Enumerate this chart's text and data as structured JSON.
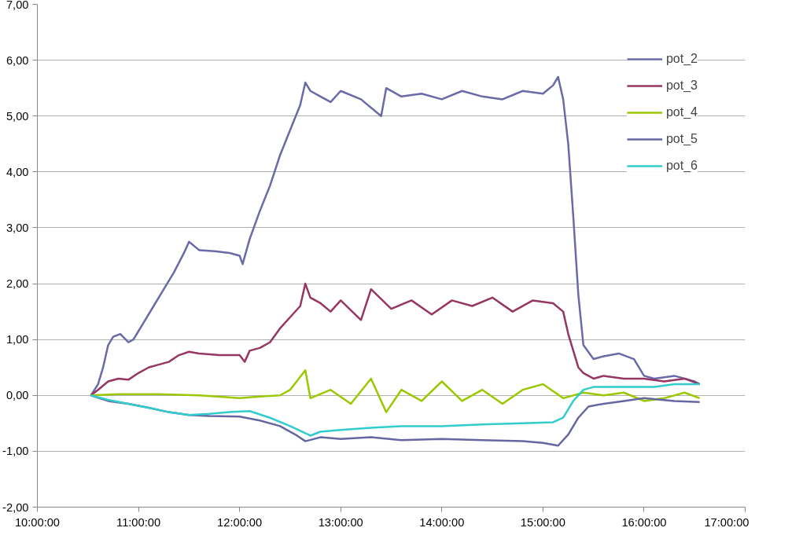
{
  "chart_data": {
    "type": "line",
    "series": [
      {
        "name": "pot_2",
        "color": "#6a6aa8",
        "x": [
          10.53,
          10.6,
          10.65,
          10.7,
          10.75,
          10.82,
          10.9,
          10.95,
          11.0,
          11.05,
          11.15,
          11.25,
          11.35,
          11.45,
          11.5,
          11.6,
          11.75,
          11.9,
          12.0,
          12.03,
          12.1,
          12.2,
          12.3,
          12.4,
          12.5,
          12.6,
          12.65,
          12.7,
          12.8,
          12.9,
          13.0,
          13.2,
          13.4,
          13.45,
          13.6,
          13.8,
          14.0,
          14.2,
          14.4,
          14.6,
          14.8,
          15.0,
          15.1,
          15.15,
          15.2,
          15.25,
          15.3,
          15.35,
          15.4,
          15.5,
          15.6,
          15.75,
          15.9,
          16.0,
          16.1,
          16.3,
          16.5,
          16.55
        ],
        "values": [
          0,
          0.2,
          0.5,
          0.9,
          1.05,
          1.1,
          0.95,
          1.0,
          1.15,
          1.3,
          1.6,
          1.9,
          2.2,
          2.55,
          2.75,
          2.6,
          2.58,
          2.55,
          2.5,
          2.35,
          2.8,
          3.3,
          3.75,
          4.3,
          4.75,
          5.2,
          5.6,
          5.45,
          5.35,
          5.25,
          5.45,
          5.3,
          5.0,
          5.5,
          5.35,
          5.4,
          5.3,
          5.45,
          5.35,
          5.3,
          5.45,
          5.4,
          5.55,
          5.7,
          5.3,
          4.5,
          3.2,
          1.8,
          0.9,
          0.65,
          0.7,
          0.75,
          0.65,
          0.35,
          0.3,
          0.35,
          0.25,
          0.2
        ]
      },
      {
        "name": "pot_3",
        "color": "#953663",
        "x": [
          10.53,
          10.6,
          10.7,
          10.8,
          10.9,
          11.0,
          11.1,
          11.2,
          11.3,
          11.4,
          11.5,
          11.6,
          11.8,
          12.0,
          12.05,
          12.1,
          12.2,
          12.3,
          12.4,
          12.5,
          12.6,
          12.65,
          12.7,
          12.8,
          12.9,
          13.0,
          13.2,
          13.3,
          13.5,
          13.7,
          13.9,
          14.1,
          14.3,
          14.5,
          14.7,
          14.9,
          15.1,
          15.2,
          15.25,
          15.3,
          15.35,
          15.4,
          15.5,
          15.6,
          15.8,
          16.0,
          16.2,
          16.4,
          16.55
        ],
        "values": [
          0,
          0.1,
          0.25,
          0.3,
          0.28,
          0.4,
          0.5,
          0.55,
          0.6,
          0.72,
          0.78,
          0.75,
          0.72,
          0.72,
          0.6,
          0.8,
          0.85,
          0.95,
          1.2,
          1.4,
          1.6,
          2.0,
          1.75,
          1.65,
          1.5,
          1.7,
          1.35,
          1.9,
          1.55,
          1.7,
          1.45,
          1.7,
          1.6,
          1.75,
          1.5,
          1.7,
          1.65,
          1.5,
          1.1,
          0.8,
          0.5,
          0.4,
          0.3,
          0.35,
          0.3,
          0.3,
          0.25,
          0.3,
          0.2
        ]
      },
      {
        "name": "pot_4",
        "color": "#9bc800",
        "x": [
          10.53,
          10.8,
          11.2,
          11.6,
          12.0,
          12.2,
          12.4,
          12.5,
          12.65,
          12.7,
          12.9,
          13.1,
          13.3,
          13.45,
          13.6,
          13.8,
          14.0,
          14.2,
          14.4,
          14.6,
          14.8,
          15.0,
          15.2,
          15.4,
          15.6,
          15.8,
          16.0,
          16.2,
          16.4,
          16.55
        ],
        "values": [
          0,
          0.02,
          0.02,
          0.0,
          -0.05,
          -0.02,
          0.0,
          0.1,
          0.45,
          -0.05,
          0.1,
          -0.15,
          0.3,
          -0.3,
          0.1,
          -0.1,
          0.25,
          -0.1,
          0.1,
          -0.15,
          0.1,
          0.2,
          -0.05,
          0.05,
          0.0,
          0.05,
          -0.1,
          -0.05,
          0.05,
          -0.05
        ]
      },
      {
        "name": "pot_5",
        "color": "#6666a0",
        "x": [
          10.53,
          10.7,
          10.9,
          11.1,
          11.3,
          11.5,
          11.7,
          12.0,
          12.2,
          12.4,
          12.55,
          12.65,
          12.8,
          13.0,
          13.3,
          13.6,
          14.0,
          14.4,
          14.8,
          15.0,
          15.15,
          15.25,
          15.35,
          15.45,
          15.6,
          15.8,
          16.0,
          16.3,
          16.55
        ],
        "values": [
          0,
          -0.1,
          -0.15,
          -0.22,
          -0.3,
          -0.35,
          -0.37,
          -0.38,
          -0.45,
          -0.55,
          -0.7,
          -0.82,
          -0.75,
          -0.78,
          -0.75,
          -0.8,
          -0.78,
          -0.8,
          -0.82,
          -0.85,
          -0.9,
          -0.7,
          -0.4,
          -0.2,
          -0.15,
          -0.1,
          -0.05,
          -0.1,
          -0.12
        ]
      },
      {
        "name": "pot_6",
        "color": "#33cccc",
        "x": [
          10.53,
          10.7,
          10.9,
          11.1,
          11.3,
          11.5,
          11.7,
          11.9,
          12.1,
          12.3,
          12.5,
          12.7,
          12.8,
          13.0,
          13.3,
          13.6,
          14.0,
          14.4,
          14.8,
          15.1,
          15.2,
          15.3,
          15.4,
          15.5,
          15.8,
          16.1,
          16.3,
          16.55
        ],
        "values": [
          0,
          -0.08,
          -0.15,
          -0.22,
          -0.3,
          -0.35,
          -0.33,
          -0.3,
          -0.28,
          -0.4,
          -0.55,
          -0.72,
          -0.65,
          -0.62,
          -0.58,
          -0.55,
          -0.55,
          -0.52,
          -0.5,
          -0.48,
          -0.4,
          -0.1,
          0.1,
          0.15,
          0.15,
          0.15,
          0.2,
          0.2
        ]
      }
    ],
    "xlim": [
      10,
      17
    ],
    "xticks": [
      {
        "value": 10,
        "label": "10:00:00"
      },
      {
        "value": 11,
        "label": "11:00:00"
      },
      {
        "value": 12,
        "label": "12:00:00"
      },
      {
        "value": 13,
        "label": "13:00:00"
      },
      {
        "value": 14,
        "label": "14:00:00"
      },
      {
        "value": 15,
        "label": "15:00:00"
      },
      {
        "value": 16,
        "label": "16:00:00"
      },
      {
        "value": 17,
        "label": "17:00:00"
      }
    ],
    "ylim": [
      -2,
      7
    ],
    "yticks": [
      {
        "value": -2,
        "label": "-2,00"
      },
      {
        "value": -1,
        "label": "-1,00"
      },
      {
        "value": 0,
        "label": "0,00"
      },
      {
        "value": 1,
        "label": "1,00"
      },
      {
        "value": 2,
        "label": "2,00"
      },
      {
        "value": 3,
        "label": "3,00"
      },
      {
        "value": 4,
        "label": "4,00"
      },
      {
        "value": 5,
        "label": "5,00"
      },
      {
        "value": 6,
        "label": "6,00"
      },
      {
        "value": 7,
        "label": "7,00"
      }
    ],
    "grid": "y",
    "legend": "top right",
    "line_style": "solid"
  }
}
